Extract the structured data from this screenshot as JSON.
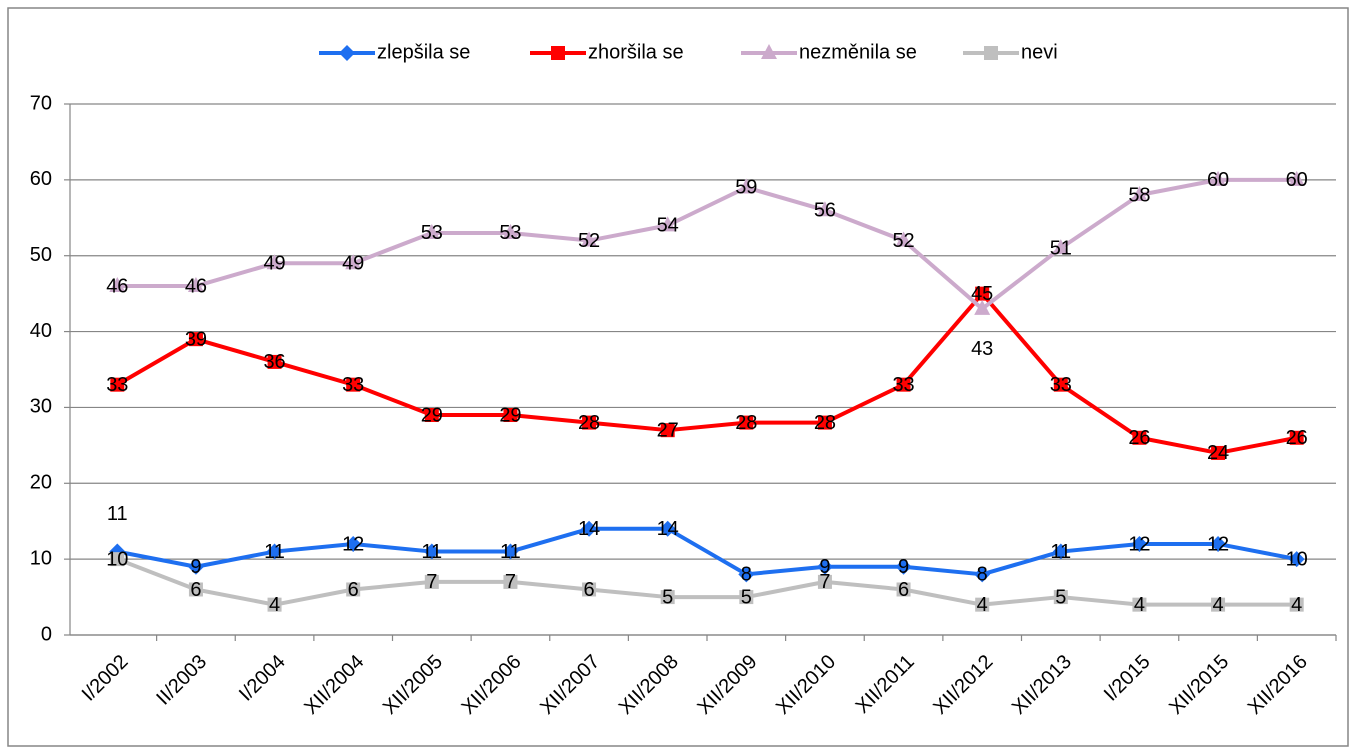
{
  "chart_data": {
    "type": "line",
    "categories": [
      "I/2002",
      "II/2003",
      "I/2004",
      "XII/2004",
      "XII/2005",
      "XII/2006",
      "XII/2007",
      "XII/2008",
      "XII/2009",
      "XII/2010",
      "XII/2011",
      "XII/2012",
      "XII/2013",
      "I/2015",
      "XII/2015",
      "XII/2016"
    ],
    "series": [
      {
        "name": "zlepšila se",
        "color": "#1e6ff0",
        "marker": "diamond",
        "values": [
          11,
          9,
          11,
          12,
          11,
          11,
          14,
          14,
          8,
          9,
          9,
          8,
          11,
          12,
          12,
          10
        ]
      },
      {
        "name": "zhoršila se",
        "color": "#ff0000",
        "marker": "square",
        "values": [
          33,
          39,
          36,
          33,
          29,
          29,
          28,
          27,
          28,
          28,
          33,
          45,
          33,
          26,
          24,
          26
        ]
      },
      {
        "name": "nezměnila se",
        "color": "#ccaacc",
        "marker": "triangle",
        "values": [
          46,
          46,
          49,
          49,
          53,
          53,
          52,
          54,
          59,
          56,
          52,
          43,
          51,
          58,
          60,
          60
        ]
      },
      {
        "name": "nevi",
        "color": "#bfbfbf",
        "marker": "square",
        "values": [
          10,
          6,
          4,
          6,
          7,
          7,
          6,
          5,
          5,
          7,
          6,
          4,
          5,
          4,
          4,
          4
        ]
      }
    ],
    "ylim": [
      0,
      70
    ],
    "yticks": [
      0,
      10,
      20,
      30,
      40,
      50,
      60,
      70
    ],
    "grid": true,
    "legend": "top"
  }
}
